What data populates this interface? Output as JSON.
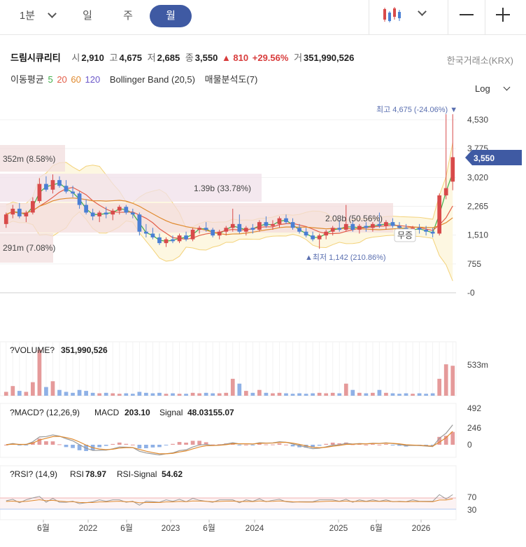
{
  "toolbar": {
    "timeframes": [
      {
        "label": "1분"
      },
      {
        "label": "일"
      },
      {
        "label": "주"
      },
      {
        "label": "월"
      }
    ],
    "chart_type_icon": "candlestick-icon",
    "zoom_out_icon": "minus-icon",
    "zoom_in_icon": "plus-icon"
  },
  "stock": {
    "name": "드림시큐리티",
    "open_label": "시",
    "open": "2,910",
    "high_label": "고",
    "high": "4,675",
    "low_label": "저",
    "low": "2,685",
    "close_label": "종",
    "close": "3,550",
    "change": "▲ 810",
    "change_pct": "+29.56%",
    "volume_label": "거",
    "volume": "351,990,526",
    "exchange": "한국거래소(KRX)"
  },
  "indicators": {
    "ma_label": "이동평균",
    "ma5": "5",
    "ma20": "20",
    "ma60": "60",
    "ma120": "120",
    "bollinger": "Bollinger Band (20,5)",
    "volume_profile": "매물분석도(7)"
  },
  "log_toggle": "Log",
  "colors": {
    "up": "#d84a4a",
    "down": "#4a7fd4",
    "accent": "#3f5aa3",
    "ma5": "#3fae49",
    "ma20": "#e35d48",
    "ma60": "#e08a2e",
    "ma120": "#6b57c9",
    "bollinger": "#f3d27a",
    "profile": "#e8c8c8"
  },
  "chart_data": {
    "type": "candlestick",
    "price_axis": [
      "4,530",
      "3,775",
      "3,020",
      "2,265",
      "1,510",
      "755",
      "-0"
    ],
    "current_price": "3,550",
    "high_annotation": "최고 4,675 (-24.06%) ▼",
    "low_annotation": "▲최저 1,142 (210.86%)",
    "profile_labels": [
      "352m (8.58%)",
      "1.39b (33.78%)",
      "2.08b (50.56%)",
      "291m (7.08%)"
    ],
    "tag_label": "무증",
    "x_ticks": [
      "6월",
      "2022",
      "6월",
      "2023",
      "6월",
      "2024",
      "2025",
      "6월",
      "2026"
    ],
    "candles": [
      [
        1800,
        2100,
        1700,
        2050
      ],
      [
        2050,
        2300,
        1950,
        2200
      ],
      [
        2200,
        2350,
        1950,
        2000
      ],
      [
        2000,
        2150,
        1850,
        2100
      ],
      [
        2100,
        2500,
        2050,
        2400
      ],
      [
        2400,
        3000,
        2350,
        2850
      ],
      [
        2850,
        3050,
        2650,
        2700
      ],
      [
        2700,
        3100,
        2600,
        2950
      ],
      [
        2950,
        3050,
        2750,
        2800
      ],
      [
        2800,
        2950,
        2600,
        2650
      ],
      [
        2650,
        2800,
        2500,
        2600
      ],
      [
        2600,
        2650,
        2200,
        2300
      ],
      [
        2300,
        2450,
        2050,
        2100
      ],
      [
        2100,
        2200,
        1900,
        2000
      ],
      [
        2000,
        2150,
        1850,
        2100
      ],
      [
        2100,
        2250,
        1950,
        2050
      ],
      [
        2050,
        2200,
        1900,
        2150
      ],
      [
        2150,
        2300,
        2050,
        2250
      ],
      [
        2250,
        2300,
        2050,
        2100
      ],
      [
        2100,
        2200,
        1950,
        2050
      ],
      [
        2050,
        2100,
        1500,
        1600
      ],
      [
        1600,
        1800,
        1450,
        1550
      ],
      [
        1550,
        1700,
        1400,
        1450
      ],
      [
        1450,
        1550,
        1250,
        1300
      ],
      [
        1300,
        1450,
        1200,
        1400
      ],
      [
        1400,
        1500,
        1300,
        1350
      ],
      [
        1350,
        1550,
        1300,
        1500
      ],
      [
        1500,
        1600,
        1350,
        1400
      ],
      [
        1400,
        1700,
        1350,
        1650
      ],
      [
        1650,
        1750,
        1550,
        1700
      ],
      [
        1700,
        1850,
        1600,
        1650
      ],
      [
        1650,
        1700,
        1450,
        1500
      ],
      [
        1500,
        1650,
        1400,
        1600
      ],
      [
        1600,
        1750,
        1500,
        1700
      ],
      [
        1700,
        2200,
        1600,
        1800
      ],
      [
        1800,
        2050,
        1550,
        1600
      ],
      [
        1600,
        1750,
        1500,
        1700
      ],
      [
        1700,
        1800,
        1550,
        1650
      ],
      [
        1650,
        1900,
        1600,
        1850
      ],
      [
        1850,
        2000,
        1700,
        1750
      ],
      [
        1750,
        1900,
        1650,
        1800
      ],
      [
        1800,
        2000,
        1700,
        1950
      ],
      [
        1950,
        2050,
        1800,
        1850
      ],
      [
        1850,
        1950,
        1650,
        1700
      ],
      [
        1700,
        1800,
        1550,
        1600
      ],
      [
        1600,
        1700,
        1450,
        1500
      ],
      [
        1500,
        1600,
        1350,
        1400
      ],
      [
        1400,
        1550,
        1150,
        1500
      ],
      [
        1500,
        1650,
        1400,
        1600
      ],
      [
        1600,
        1750,
        1500,
        1700
      ],
      [
        1700,
        1900,
        1600,
        1650
      ],
      [
        1650,
        2300,
        1600,
        1800
      ],
      [
        1800,
        1900,
        1600,
        1650
      ],
      [
        1650,
        1800,
        1550,
        1750
      ],
      [
        1750,
        1850,
        1600,
        1700
      ],
      [
        1700,
        1850,
        1600,
        1800
      ],
      [
        1800,
        2100,
        1700,
        1750
      ],
      [
        1750,
        1900,
        1650,
        1850
      ],
      [
        1850,
        1950,
        1700,
        1750
      ],
      [
        1750,
        1850,
        1650,
        1700
      ],
      [
        1700,
        1800,
        1550,
        1600
      ],
      [
        1600,
        1750,
        1500,
        1700
      ],
      [
        1700,
        1800,
        1550,
        1650
      ],
      [
        1650,
        1750,
        1500,
        1600
      ],
      [
        1600,
        1700,
        1450,
        1550
      ],
      [
        1550,
        2600,
        1500,
        2550
      ],
      [
        2550,
        4675,
        2450,
        2740
      ],
      [
        2910,
        4675,
        2685,
        3550
      ]
    ],
    "volume_title": "?VOLUME?",
    "volume_value": "351,990,526",
    "volume_axis": [
      "533m"
    ],
    "volume": [
      0.08,
      0.2,
      0.1,
      0.08,
      0.28,
      0.95,
      0.18,
      0.3,
      0.12,
      0.08,
      0.06,
      0.12,
      0.1,
      0.06,
      0.05,
      0.06,
      0.05,
      0.04,
      0.05,
      0.04,
      0.08,
      0.06,
      0.05,
      0.06,
      0.04,
      0.05,
      0.04,
      0.04,
      0.06,
      0.05,
      0.06,
      0.05,
      0.05,
      0.06,
      0.35,
      0.25,
      0.1,
      0.06,
      0.12,
      0.06,
      0.05,
      0.06,
      0.05,
      0.04,
      0.05,
      0.04,
      0.05,
      0.06,
      0.05,
      0.06,
      0.05,
      0.25,
      0.12,
      0.06,
      0.05,
      0.06,
      0.12,
      0.06,
      0.05,
      0.04,
      0.05,
      0.04,
      0.05,
      0.04,
      0.05,
      0.35,
      0.65,
      0.62
    ],
    "macd_title": "?MACD? (12,26,9)",
    "macd_label": "MACD",
    "macd_value": "203.10",
    "signal_label": "Signal",
    "signal_value": "48.03155.07",
    "macd_axis": [
      "492",
      "246",
      "0"
    ],
    "rsi_title": "?RSI? (14,9)",
    "rsi_label": "RSI",
    "rsi_value": "78.97",
    "rsi_signal_label": "RSI-Signal",
    "rsi_signal_value": "54.62",
    "rsi_axis": [
      "70",
      "30"
    ]
  }
}
